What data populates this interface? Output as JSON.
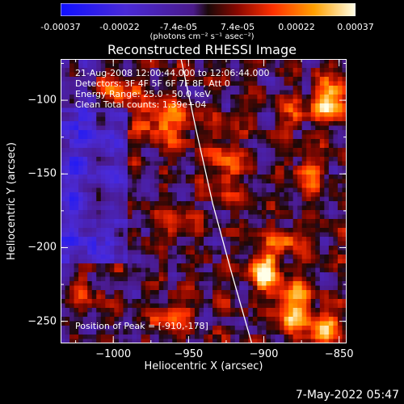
{
  "chart_data": {
    "type": "heatmap",
    "title": "Reconstructed RHESSI Image",
    "xlabel": "Heliocentric X (arcsec)",
    "ylabel": "Heliocentric Y (arcsec)",
    "xlim": [
      -1035,
      -845
    ],
    "ylim": [
      -265,
      -72
    ],
    "x_ticks": [
      -1000,
      -950,
      -900,
      -850
    ],
    "y_ticks": [
      -100,
      -150,
      -200,
      -250
    ],
    "colorbar": {
      "ticks": [
        "-0.00037",
        "-0.00022",
        "-7.4e-05",
        "7.4e-05",
        "0.00022",
        "0.00037"
      ],
      "units": "(photons cm⁻² s⁻¹ asec⁻²)",
      "range": [
        -0.00037,
        0.00037
      ]
    },
    "annotations": {
      "time": "21-Aug-2008 12:00:44.000 to 12:06:44.000",
      "detectors": "Detectors: 3F 4F 5F 6F 7F 8F, Att 0",
      "energy": "Energy Range: 25.0 - 50.0 keV",
      "clean": "Clean     Total counts: 1.39e+04",
      "peak": "Position of Peak = [-910,-178]"
    },
    "peak_position": [
      -910,
      -178
    ],
    "limb_curve": [
      [
        -955,
        -72
      ],
      [
        -945,
        -120
      ],
      [
        -934,
        -170
      ],
      [
        -922,
        -215
      ],
      [
        -908,
        -265
      ]
    ],
    "grid": false
  },
  "footer": {
    "date": "7-May-2022 05:47"
  }
}
